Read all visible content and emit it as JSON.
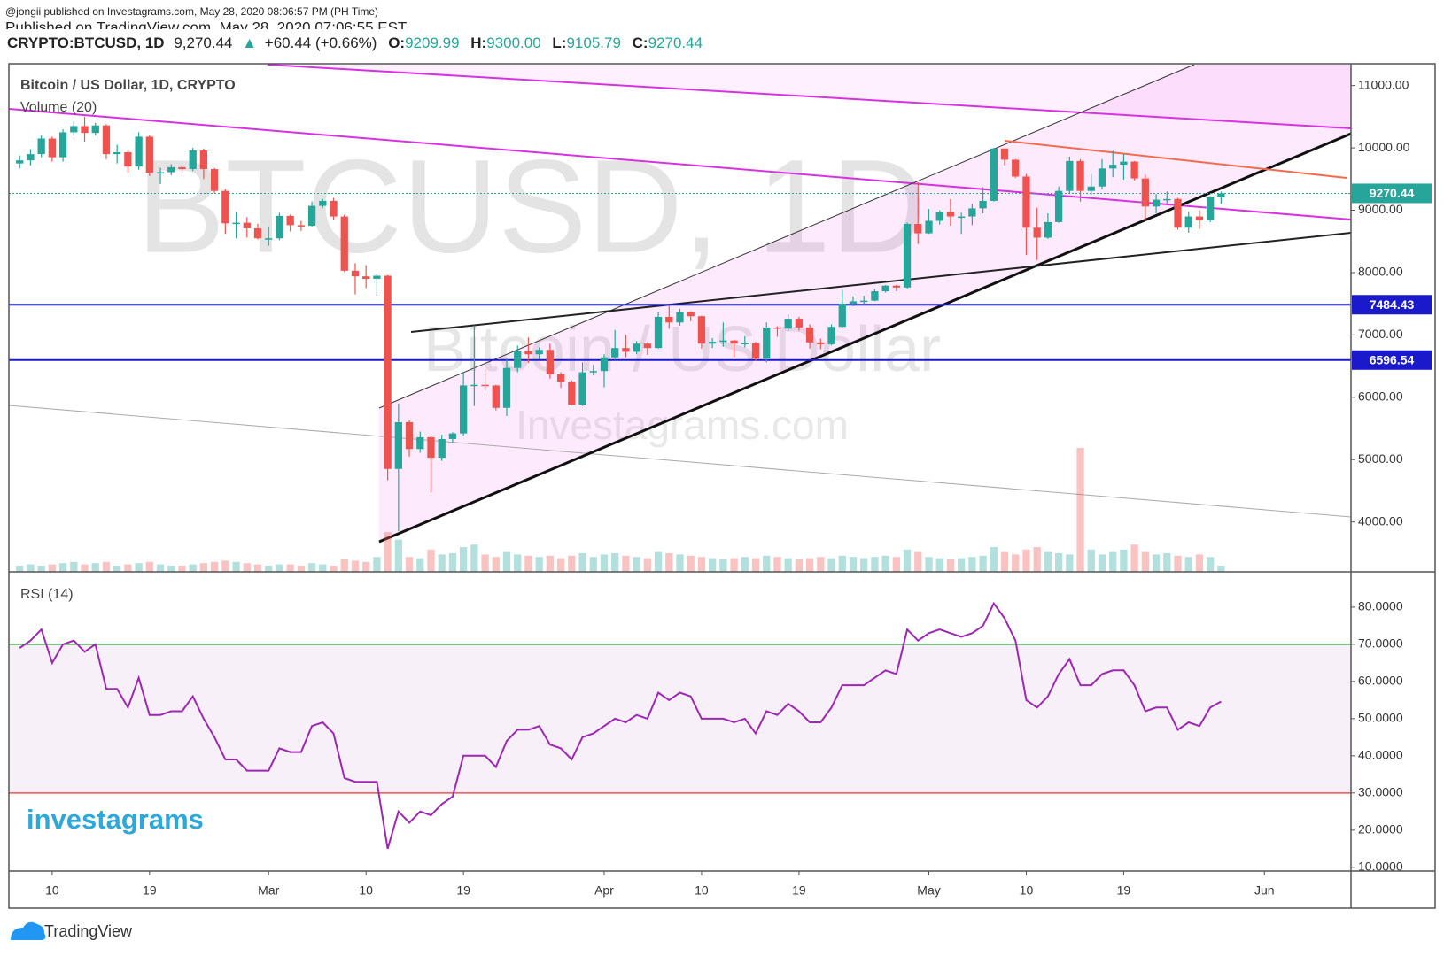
{
  "header": {
    "published": "@jongii published on Investagrams.com, May 28, 2020 08:06:57 PM (PH Time)",
    "published2": "Published on TradingView.com, May 28, 2020 07:06:55 EST",
    "symbol": "CRYPTO:BTCUSD, 1D",
    "price": "9,270.44",
    "change": "+60.44 (+0.66%)",
    "o_label": "O:",
    "o": "9209.99",
    "h_label": "H:",
    "h": "9300.00",
    "l_label": "L:",
    "l": "9105.79",
    "c_label": "C:",
    "c": "9270.44"
  },
  "footer": {
    "brand": "TradingView",
    "logo": "investagrams"
  },
  "chart_data": {
    "type": "candlestick",
    "title": "Bitcoin / US Dollar, 1D, CRYPTO",
    "watermark": {
      "symbol": "BTCUSD, 1D",
      "description": "Bitcoin / US Dollar",
      "site": "Investagrams.com"
    },
    "x": [
      "2020-02-07",
      "2020-02-08",
      "2020-02-09",
      "2020-02-10",
      "2020-02-11",
      "2020-02-12",
      "2020-02-13",
      "2020-02-14",
      "2020-02-15",
      "2020-02-16",
      "2020-02-17",
      "2020-02-18",
      "2020-02-19",
      "2020-02-20",
      "2020-02-21",
      "2020-02-22",
      "2020-02-23",
      "2020-02-24",
      "2020-02-25",
      "2020-02-26",
      "2020-02-27",
      "2020-02-28",
      "2020-02-29",
      "2020-03-01",
      "2020-03-02",
      "2020-03-03",
      "2020-03-04",
      "2020-03-05",
      "2020-03-06",
      "2020-03-07",
      "2020-03-08",
      "2020-03-09",
      "2020-03-10",
      "2020-03-11",
      "2020-03-12",
      "2020-03-13",
      "2020-03-14",
      "2020-03-15",
      "2020-03-16",
      "2020-03-17",
      "2020-03-18",
      "2020-03-19",
      "2020-03-20",
      "2020-03-21",
      "2020-03-22",
      "2020-03-23",
      "2020-03-24",
      "2020-03-25",
      "2020-03-26",
      "2020-03-27",
      "2020-03-28",
      "2020-03-29",
      "2020-03-30",
      "2020-03-31",
      "2020-04-01",
      "2020-04-02",
      "2020-04-03",
      "2020-04-04",
      "2020-04-05",
      "2020-04-06",
      "2020-04-07",
      "2020-04-08",
      "2020-04-09",
      "2020-04-10",
      "2020-04-11",
      "2020-04-12",
      "2020-04-13",
      "2020-04-14",
      "2020-04-15",
      "2020-04-16",
      "2020-04-17",
      "2020-04-18",
      "2020-04-19",
      "2020-04-20",
      "2020-04-21",
      "2020-04-22",
      "2020-04-23",
      "2020-04-24",
      "2020-04-25",
      "2020-04-26",
      "2020-04-27",
      "2020-04-28",
      "2020-04-29",
      "2020-04-30",
      "2020-05-01",
      "2020-05-02",
      "2020-05-03",
      "2020-05-04",
      "2020-05-05",
      "2020-05-06",
      "2020-05-07",
      "2020-05-08",
      "2020-05-09",
      "2020-05-10",
      "2020-05-11",
      "2020-05-12",
      "2020-05-13",
      "2020-05-14",
      "2020-05-15",
      "2020-05-16",
      "2020-05-17",
      "2020-05-18",
      "2020-05-19",
      "2020-05-20",
      "2020-05-21",
      "2020-05-22",
      "2020-05-23",
      "2020-05-24",
      "2020-05-25",
      "2020-05-26",
      "2020-05-27",
      "2020-05-28"
    ],
    "open": [
      9750,
      9800,
      9900,
      10150,
      9850,
      10250,
      10350,
      10240,
      10360,
      9900,
      9930,
      9700,
      10180,
      9600,
      9610,
      9690,
      9660,
      9960,
      9660,
      9310,
      8790,
      8800,
      8710,
      8550,
      8550,
      8910,
      8760,
      8750,
      9070,
      9150,
      8900,
      8030,
      7940,
      7900,
      7950,
      4850,
      5600,
      5170,
      5360,
      5030,
      5330,
      5420,
      6190,
      6200,
      6190,
      5830,
      6470,
      6740,
      6690,
      6760,
      6370,
      6250,
      5880,
      6400,
      6420,
      6640,
      6790,
      6730,
      6860,
      6790,
      7290,
      7200,
      7370,
      7300,
      6860,
      6890,
      6910,
      6860,
      6870,
      6620,
      7120,
      7100,
      7260,
      7120,
      6880,
      6850,
      7130,
      7500,
      7540,
      7550,
      7700,
      7790,
      7760,
      8780,
      8630,
      8830,
      8970,
      8900,
      8900,
      9030,
      9150,
      9990,
      9810,
      9540,
      8720,
      8560,
      8810,
      9310,
      9790,
      9310,
      9380,
      9670,
      9730,
      9780,
      9510,
      9060,
      9170,
      9180,
      8720,
      8900,
      8840,
      9209.99
    ],
    "high": [
      9880,
      9980,
      10200,
      10180,
      10300,
      10420,
      10500,
      10400,
      10380,
      10050,
      9960,
      10250,
      10200,
      9680,
      9740,
      9730,
      10000,
      9990,
      9680,
      9340,
      8970,
      8890,
      8780,
      8740,
      8960,
      8930,
      8830,
      9140,
      9180,
      9200,
      8930,
      8150,
      8120,
      7980,
      7960,
      5900,
      5640,
      5450,
      5380,
      5400,
      5440,
      6410,
      7150,
      6440,
      6200,
      6620,
      6830,
      6960,
      6800,
      6860,
      6400,
      6270,
      6560,
      6520,
      6690,
      7080,
      7000,
      6900,
      6880,
      7370,
      7460,
      7420,
      7380,
      7310,
      6950,
      7200,
      6920,
      6980,
      6890,
      7200,
      7140,
      7330,
      7290,
      7170,
      6940,
      7170,
      7720,
      7620,
      7630,
      7730,
      7800,
      7800,
      8800,
      9450,
      9020,
      9000,
      9180,
      8960,
      9100,
      9370,
      10000,
      9990,
      9820,
      9580,
      9040,
      8950,
      9380,
      9860,
      9820,
      9580,
      9820,
      9960,
      9900,
      9790,
      9570,
      9260,
      9300,
      9200,
      8980,
      9000,
      9230,
      9300
    ],
    "low": [
      9670,
      9720,
      9850,
      9780,
      9780,
      10200,
      10100,
      10200,
      9820,
      9750,
      9600,
      9650,
      9550,
      9420,
      9560,
      9590,
      9630,
      9500,
      9280,
      8620,
      8550,
      8560,
      8530,
      8430,
      8520,
      8660,
      8670,
      8740,
      9040,
      8850,
      8010,
      7650,
      7750,
      7630,
      4670,
      3850,
      5050,
      5110,
      4470,
      4980,
      5260,
      5380,
      5860,
      6100,
      5790,
      5700,
      6400,
      6550,
      6610,
      6300,
      6150,
      5870,
      5860,
      6350,
      6160,
      6600,
      6640,
      6690,
      6680,
      6780,
      7100,
      7150,
      7220,
      6780,
      6790,
      6810,
      6640,
      6800,
      6580,
      6560,
      6970,
      7060,
      7070,
      6780,
      6770,
      6830,
      7120,
      7460,
      7500,
      7540,
      7680,
      7700,
      7740,
      8460,
      8620,
      8770,
      8750,
      8620,
      8760,
      8950,
      9140,
      9720,
      9520,
      8280,
      8200,
      8540,
      8800,
      9260,
      9140,
      9250,
      9340,
      9530,
      9490,
      9480,
      8830,
      8950,
      9100,
      8690,
      8640,
      8700,
      8810,
      9105.79
    ],
    "close": [
      9800,
      9900,
      10150,
      9850,
      10250,
      10350,
      10240,
      10360,
      9900,
      9930,
      9700,
      10180,
      9600,
      9610,
      9690,
      9660,
      9960,
      9660,
      9310,
      8790,
      8800,
      8710,
      8550,
      8550,
      8910,
      8760,
      8750,
      9070,
      9150,
      8900,
      8030,
      7940,
      7900,
      7950,
      4850,
      5600,
      5170,
      5360,
      5030,
      5330,
      5420,
      6190,
      6200,
      6190,
      5830,
      6470,
      6740,
      6690,
      6760,
      6370,
      6250,
      5880,
      6400,
      6420,
      6640,
      6790,
      6730,
      6860,
      6790,
      7290,
      7200,
      7370,
      7300,
      6860,
      6890,
      6910,
      6860,
      6870,
      6620,
      7120,
      7100,
      7260,
      7120,
      6880,
      6850,
      7130,
      7500,
      7540,
      7550,
      7700,
      7790,
      7760,
      8780,
      8630,
      8830,
      8970,
      8900,
      8900,
      9030,
      9150,
      9990,
      9810,
      9540,
      8720,
      8560,
      8810,
      9310,
      9790,
      9310,
      9380,
      9670,
      9730,
      9780,
      9510,
      9060,
      9170,
      9180,
      8720,
      8900,
      8840,
      9210,
      9270.44
    ],
    "up_color": "#26a69a",
    "down_color": "#ef5350",
    "volume": {
      "name": "Volume (20)",
      "values": [
        5,
        6,
        5,
        6,
        7,
        8,
        6,
        7,
        8,
        5,
        6,
        7,
        8,
        6,
        5,
        5,
        6,
        7,
        8,
        9,
        8,
        7,
        6,
        5,
        6,
        6,
        5,
        7,
        6,
        5,
        10,
        9,
        8,
        12,
        32,
        26,
        12,
        11,
        18,
        14,
        15,
        20,
        22,
        14,
        12,
        16,
        14,
        13,
        12,
        13,
        11,
        13,
        15,
        12,
        14,
        15,
        13,
        12,
        11,
        16,
        15,
        14,
        13,
        12,
        11,
        10,
        11,
        12,
        11,
        13,
        12,
        11,
        10,
        11,
        12,
        11,
        13,
        12,
        11,
        12,
        13,
        12,
        18,
        16,
        12,
        11,
        10,
        11,
        12,
        13,
        20,
        16,
        14,
        18,
        20,
        16,
        15,
        14,
        100,
        18,
        14,
        16,
        18,
        22,
        16,
        14,
        15,
        13,
        12,
        14,
        12,
        5
      ]
    },
    "xlim": [
      "2020-02-06",
      "2020-06-09"
    ],
    "xticks": [
      {
        "value": "2020-02-10",
        "label": "10"
      },
      {
        "value": "2020-02-19",
        "label": "19"
      },
      {
        "value": "2020-03-01",
        "label": "Mar"
      },
      {
        "value": "2020-03-10",
        "label": "10"
      },
      {
        "value": "2020-03-19",
        "label": "19"
      },
      {
        "value": "2020-04-01",
        "label": "Apr"
      },
      {
        "value": "2020-04-10",
        "label": "10"
      },
      {
        "value": "2020-04-19",
        "label": "19"
      },
      {
        "value": "2020-05-01",
        "label": "May"
      },
      {
        "value": "2020-05-10",
        "label": "10"
      },
      {
        "value": "2020-05-19",
        "label": "19"
      },
      {
        "value": "2020-06-01",
        "label": "Jun"
      }
    ],
    "ylim": [
      3200,
      11350
    ],
    "yticks": [
      {
        "value": 4000,
        "label": "4000.00"
      },
      {
        "value": 5000,
        "label": "5000.00"
      },
      {
        "value": 6000,
        "label": "6000.00"
      },
      {
        "value": 7000,
        "label": "7000.00"
      },
      {
        "value": 8000,
        "label": "8000.00"
      },
      {
        "value": 9000,
        "label": "9000.00"
      },
      {
        "value": 10000,
        "label": "10000.00"
      },
      {
        "value": 11000,
        "label": "11000.00"
      }
    ],
    "grid": false,
    "last_price": {
      "value": 9270.44,
      "color": "#26a69a"
    },
    "hlines": [
      {
        "value": 7484.43,
        "color": "#1a1acc"
      },
      {
        "value": 6596.54,
        "color": "#1a1acc"
      }
    ],
    "rsi": {
      "name": "RSI (14)",
      "color": "#9c27b0",
      "values": [
        69,
        71,
        74,
        65,
        70,
        71,
        68,
        70,
        58,
        58,
        53,
        61,
        51,
        51,
        52,
        52,
        56,
        50,
        45,
        39,
        39,
        36,
        36,
        36,
        42,
        41,
        41,
        48,
        49,
        46,
        34,
        33,
        33,
        33,
        15,
        25,
        22,
        25,
        24,
        27,
        29,
        40,
        40,
        40,
        37,
        44,
        47,
        47,
        48,
        43,
        42,
        39,
        45,
        46,
        48,
        50,
        49,
        51,
        50,
        57,
        55,
        57,
        56,
        50,
        50,
        50,
        49,
        50,
        46,
        52,
        51,
        54,
        52,
        49,
        49,
        53,
        59,
        59,
        59,
        61,
        63,
        62,
        74,
        71,
        73,
        74,
        73,
        72,
        73,
        75,
        81,
        77,
        71,
        55,
        53,
        56,
        62,
        66,
        59,
        59,
        62,
        63,
        63,
        59,
        52,
        53,
        53,
        47,
        49,
        48,
        53,
        54.6
      ],
      "ylim": [
        9,
        89.5
      ],
      "yticks": [
        {
          "value": 10,
          "label": "10.0000"
        },
        {
          "value": 20,
          "label": "20.0000"
        },
        {
          "value": 30,
          "label": "30.0000"
        },
        {
          "value": 40,
          "label": "40.0000"
        },
        {
          "value": 50,
          "label": "50.0000"
        },
        {
          "value": 60,
          "label": "60.0000"
        },
        {
          "value": 70,
          "label": "70.0000"
        },
        {
          "value": 80,
          "label": "80.0000"
        }
      ],
      "levels": [
        {
          "value": 70,
          "color": "#43a047"
        },
        {
          "value": 30,
          "color": "#ef5350"
        }
      ]
    }
  }
}
